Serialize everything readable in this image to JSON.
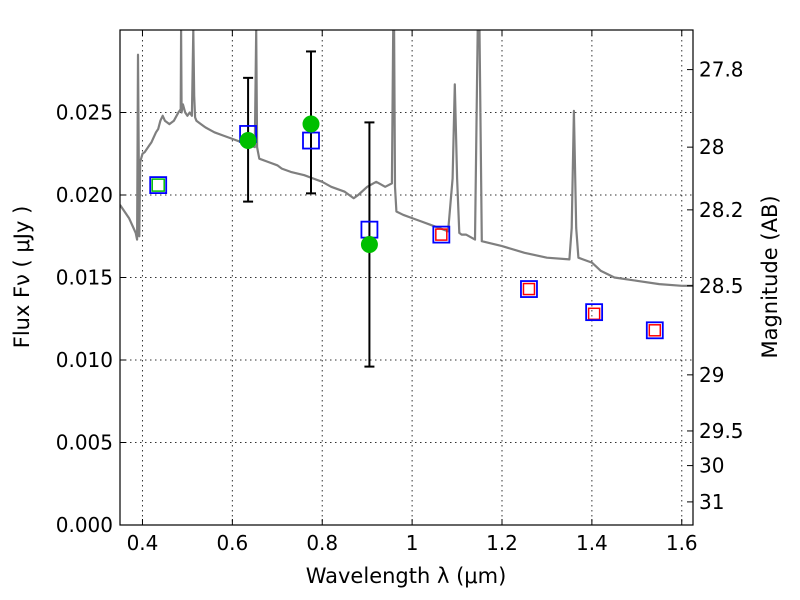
{
  "chart_data": {
    "type": "scatter",
    "xlabel": "Wavelength  λ (μm)",
    "ylabel": "Flux  Fν  ( μJy )",
    "y2label": "Magnitude (AB)",
    "xlim": [
      0.35,
      1.625
    ],
    "ylim": [
      0.0,
      0.03
    ],
    "grid": true,
    "x_ticks": [
      0.4,
      0.6,
      0.8,
      1.0,
      1.2,
      1.4,
      1.6
    ],
    "x_tick_labels": [
      "0.4",
      "0.6",
      "0.8",
      "1",
      "1.2",
      "1.4",
      "1.6"
    ],
    "y_ticks": [
      0.0,
      0.005,
      0.01,
      0.015,
      0.02,
      0.025
    ],
    "y_tick_labels": [
      "0.000",
      "0.005",
      "0.010",
      "0.015",
      "0.020",
      "0.025"
    ],
    "y2_ticks": [
      {
        "label": "27.8",
        "flux": 0.0276
      },
      {
        "label": "28",
        "flux": 0.0229
      },
      {
        "label": "28.2",
        "flux": 0.0191
      },
      {
        "label": "28.5",
        "flux": 0.0145
      },
      {
        "label": "29",
        "flux": 0.0091
      },
      {
        "label": "29.5",
        "flux": 0.0057
      },
      {
        "label": "30",
        "flux": 0.0036
      },
      {
        "label": "31",
        "flux": 0.0014
      }
    ],
    "colors": {
      "template": "#7f7f7f",
      "model_box": "#0000ff",
      "observed": "#00bf00",
      "predicted": "#ff0000",
      "errorbar": "#000000"
    },
    "series": [
      {
        "kind": "model_boxes",
        "x": [
          0.435,
          0.635,
          0.775,
          0.905,
          1.065,
          1.26,
          1.405,
          1.54
        ],
        "y": [
          0.0206,
          0.0237,
          0.0233,
          0.0179,
          0.0176,
          0.0143,
          0.0129,
          0.0118
        ]
      },
      {
        "kind": "observed_points",
        "x": [
          0.635,
          0.775,
          0.905
        ],
        "y": [
          0.0233,
          0.0243,
          0.017
        ],
        "err_low": [
          0.0196,
          0.0201,
          0.0096
        ],
        "err_high": [
          0.0271,
          0.0287,
          0.0244
        ]
      },
      {
        "kind": "observed_box",
        "x": [
          0.435
        ],
        "y": [
          0.0206
        ]
      },
      {
        "kind": "predicted_boxes",
        "x": [
          1.065,
          1.26,
          1.405,
          1.54
        ],
        "y": [
          0.0176,
          0.0143,
          0.0128,
          0.0118
        ]
      },
      {
        "kind": "template_spectrum",
        "x": [
          0.35,
          0.36,
          0.37,
          0.38,
          0.385,
          0.388,
          0.39,
          0.393,
          0.395,
          0.397,
          0.4,
          0.405,
          0.41,
          0.415,
          0.42,
          0.425,
          0.43,
          0.435,
          0.44,
          0.445,
          0.45,
          0.46,
          0.47,
          0.48,
          0.485,
          0.486,
          0.487,
          0.49,
          0.495,
          0.5,
          0.505,
          0.51,
          0.513,
          0.515,
          0.517,
          0.52,
          0.53,
          0.54,
          0.56,
          0.58,
          0.6,
          0.62,
          0.64,
          0.65,
          0.653,
          0.655,
          0.657,
          0.66,
          0.68,
          0.7,
          0.71,
          0.73,
          0.76,
          0.78,
          0.8,
          0.82,
          0.85,
          0.87,
          0.88,
          0.9,
          0.92,
          0.94,
          0.955,
          0.958,
          0.96,
          0.962,
          0.965,
          0.98,
          1.0,
          1.02,
          1.04,
          1.06,
          1.08,
          1.09,
          1.095,
          1.1,
          1.105,
          1.11,
          1.12,
          1.14,
          1.146,
          1.148,
          1.15,
          1.152,
          1.155,
          1.17,
          1.2,
          1.25,
          1.3,
          1.35,
          1.355,
          1.36,
          1.365,
          1.37,
          1.38,
          1.4,
          1.42,
          1.45,
          1.5,
          1.55,
          1.6,
          1.625
        ],
        "y": [
          0.0194,
          0.019,
          0.0186,
          0.018,
          0.0177,
          0.0173,
          0.0285,
          0.0175,
          0.022,
          0.0222,
          0.0225,
          0.0226,
          0.0228,
          0.023,
          0.0232,
          0.0235,
          0.0238,
          0.024,
          0.0245,
          0.0248,
          0.0245,
          0.0243,
          0.0245,
          0.025,
          0.0252,
          0.03,
          0.025,
          0.0255,
          0.025,
          0.0248,
          0.025,
          0.0248,
          0.03,
          0.026,
          0.0247,
          0.0245,
          0.0243,
          0.0241,
          0.0238,
          0.0236,
          0.0234,
          0.0232,
          0.023,
          0.0229,
          0.03,
          0.0229,
          0.0226,
          0.0222,
          0.022,
          0.0218,
          0.0216,
          0.0214,
          0.0212,
          0.021,
          0.0208,
          0.0205,
          0.0202,
          0.0198,
          0.02,
          0.0205,
          0.0208,
          0.0205,
          0.0207,
          0.03,
          0.03,
          0.0205,
          0.019,
          0.0188,
          0.0186,
          0.0184,
          0.0182,
          0.018,
          0.0178,
          0.021,
          0.0267,
          0.021,
          0.0177,
          0.0176,
          0.0176,
          0.0173,
          0.03,
          0.03,
          0.03,
          0.025,
          0.0172,
          0.0171,
          0.0169,
          0.0165,
          0.0162,
          0.0161,
          0.018,
          0.0251,
          0.018,
          0.0162,
          0.0161,
          0.0159,
          0.0154,
          0.015,
          0.0148,
          0.0146,
          0.0145,
          0.0145
        ]
      }
    ]
  }
}
